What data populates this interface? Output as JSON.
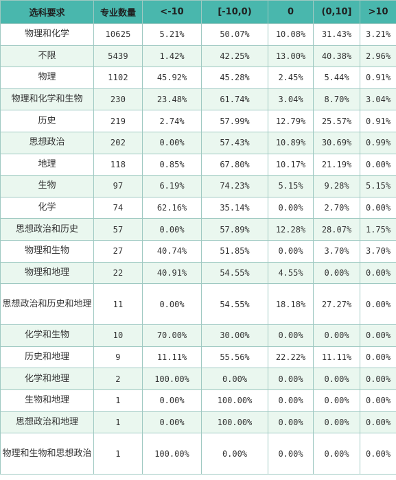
{
  "table": {
    "headers": [
      "选科要求",
      "专业数量",
      "<-10",
      "[-10,0)",
      "0",
      "(0,10]",
      ">10"
    ],
    "rows": [
      {
        "name": "物理和化学",
        "count": "10625",
        "v1": "5.21%",
        "v2": "50.07%",
        "v3": "10.08%",
        "v4": "31.43%",
        "v5": "3.21%"
      },
      {
        "name": "不限",
        "count": "5439",
        "v1": "1.42%",
        "v2": "42.25%",
        "v3": "13.00%",
        "v4": "40.38%",
        "v5": "2.96%"
      },
      {
        "name": "物理",
        "count": "1102",
        "v1": "45.92%",
        "v2": "45.28%",
        "v3": "2.45%",
        "v4": "5.44%",
        "v5": "0.91%"
      },
      {
        "name": "物理和化学和生物",
        "count": "230",
        "v1": "23.48%",
        "v2": "61.74%",
        "v3": "3.04%",
        "v4": "8.70%",
        "v5": "3.04%"
      },
      {
        "name": "历史",
        "count": "219",
        "v1": "2.74%",
        "v2": "57.99%",
        "v3": "12.79%",
        "v4": "25.57%",
        "v5": "0.91%"
      },
      {
        "name": "思想政治",
        "count": "202",
        "v1": "0.00%",
        "v2": "57.43%",
        "v3": "10.89%",
        "v4": "30.69%",
        "v5": "0.99%"
      },
      {
        "name": "地理",
        "count": "118",
        "v1": "0.85%",
        "v2": "67.80%",
        "v3": "10.17%",
        "v4": "21.19%",
        "v5": "0.00%"
      },
      {
        "name": "生物",
        "count": "97",
        "v1": "6.19%",
        "v2": "74.23%",
        "v3": "5.15%",
        "v4": "9.28%",
        "v5": "5.15%"
      },
      {
        "name": "化学",
        "count": "74",
        "v1": "62.16%",
        "v2": "35.14%",
        "v3": "0.00%",
        "v4": "2.70%",
        "v5": "0.00%"
      },
      {
        "name": "思想政治和历史",
        "count": "57",
        "v1": "0.00%",
        "v2": "57.89%",
        "v3": "12.28%",
        "v4": "28.07%",
        "v5": "1.75%"
      },
      {
        "name": "物理和生物",
        "count": "27",
        "v1": "40.74%",
        "v2": "51.85%",
        "v3": "0.00%",
        "v4": "3.70%",
        "v5": "3.70%"
      },
      {
        "name": "物理和地理",
        "count": "22",
        "v1": "40.91%",
        "v2": "54.55%",
        "v3": "4.55%",
        "v4": "0.00%",
        "v5": "0.00%"
      },
      {
        "name": "思想政治和历史和地理",
        "count": "11",
        "v1": "0.00%",
        "v2": "54.55%",
        "v3": "18.18%",
        "v4": "27.27%",
        "v5": "0.00%"
      },
      {
        "name": "化学和生物",
        "count": "10",
        "v1": "70.00%",
        "v2": "30.00%",
        "v3": "0.00%",
        "v4": "0.00%",
        "v5": "0.00%"
      },
      {
        "name": "历史和地理",
        "count": "9",
        "v1": "11.11%",
        "v2": "55.56%",
        "v3": "22.22%",
        "v4": "11.11%",
        "v5": "0.00%"
      },
      {
        "name": "化学和地理",
        "count": "2",
        "v1": "100.00%",
        "v2": "0.00%",
        "v3": "0.00%",
        "v4": "0.00%",
        "v5": "0.00%"
      },
      {
        "name": "生物和地理",
        "count": "1",
        "v1": "0.00%",
        "v2": "100.00%",
        "v3": "0.00%",
        "v4": "0.00%",
        "v5": "0.00%"
      },
      {
        "name": "思想政治和地理",
        "count": "1",
        "v1": "0.00%",
        "v2": "100.00%",
        "v3": "0.00%",
        "v4": "0.00%",
        "v5": "0.00%"
      },
      {
        "name": "物理和生物和思想政治",
        "count": "1",
        "v1": "100.00%",
        "v2": "0.00%",
        "v3": "0.00%",
        "v4": "0.00%",
        "v5": "0.00%"
      }
    ]
  },
  "colors": {
    "header_bg": "#49b7ad",
    "row_alt_bg": "#eaf7ef",
    "border": "#9fc9c2"
  }
}
